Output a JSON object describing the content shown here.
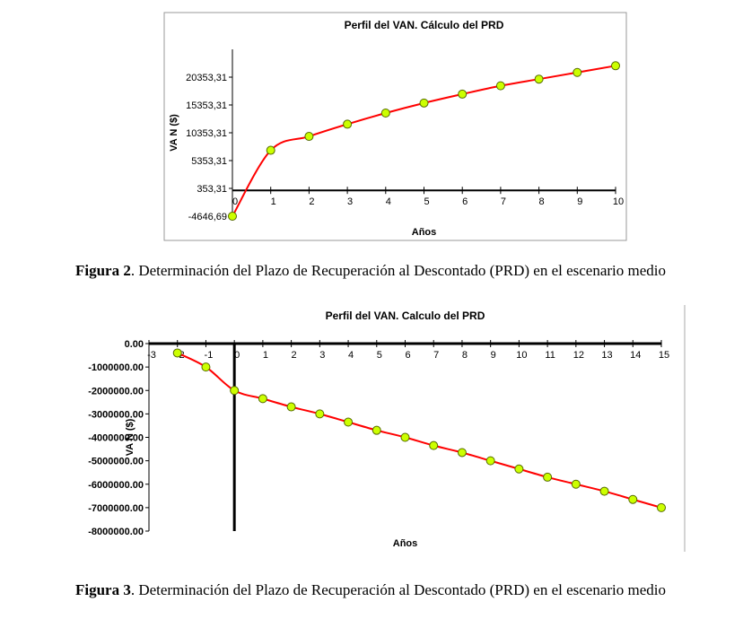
{
  "chart_data": [
    {
      "type": "line",
      "title": "Perfil del VAN. Cálculo del PRD",
      "x_label": "Años",
      "y_label": "VA N ($)",
      "x": [
        0,
        1,
        2,
        3,
        4,
        5,
        6,
        7,
        8,
        9,
        10
      ],
      "series": [
        {
          "name": "VAN",
          "color": "#ff0000",
          "marker_color": "#ccff00",
          "values": [
            -4646.69,
            7200,
            9700,
            11900,
            13900,
            15700,
            17300,
            18800,
            20000,
            21200,
            22400
          ]
        }
      ],
      "xlim": [
        0,
        10
      ],
      "xticks": [
        0,
        1,
        2,
        3,
        4,
        5,
        6,
        7,
        8,
        9,
        10
      ],
      "ylim": [
        -4646.69,
        25353.31
      ],
      "yticks": [
        {
          "value": -4646.69,
          "label": "-4646,69"
        },
        {
          "value": 353.31,
          "label": "353,31"
        },
        {
          "value": 5353.31,
          "label": "5353,31"
        },
        {
          "value": 10353.31,
          "label": "10353,31"
        },
        {
          "value": 15353.31,
          "label": "15353,31"
        },
        {
          "value": 20353.31,
          "label": "20353,31"
        }
      ]
    },
    {
      "type": "line",
      "title": "Perfil del VAN. Calculo del PRD",
      "x_label": "Años",
      "y_label": "VA N ($)",
      "x": [
        -2,
        -1,
        0,
        1,
        2,
        3,
        4,
        5,
        6,
        7,
        8,
        9,
        10,
        11,
        12,
        13,
        14,
        15
      ],
      "series": [
        {
          "name": "VAN",
          "color": "#ff0000",
          "marker_color": "#ccff00",
          "values": [
            -400000,
            -1000000,
            -2000000,
            -2350000,
            -2700000,
            -3000000,
            -3350000,
            -3700000,
            -4000000,
            -4350000,
            -4650000,
            -5000000,
            -5350000,
            -5700000,
            -6000000,
            -6300000,
            -6650000,
            -7000000
          ]
        }
      ],
      "xlim": [
        -3,
        15
      ],
      "xticks": [
        -3,
        -2,
        -1,
        0,
        1,
        2,
        3,
        4,
        5,
        6,
        7,
        8,
        9,
        10,
        11,
        12,
        13,
        14,
        15
      ],
      "ylim": [
        -8000000,
        0
      ],
      "yticks": [
        {
          "value": 0,
          "label": "0.00"
        },
        {
          "value": -1000000,
          "label": "-1000000.00"
        },
        {
          "value": -2000000,
          "label": "-2000000.00"
        },
        {
          "value": -3000000,
          "label": "-3000000.00"
        },
        {
          "value": -4000000,
          "label": "-4000000.00"
        },
        {
          "value": -5000000,
          "label": "-5000000.00"
        },
        {
          "value": -6000000,
          "label": "-6000000.00"
        },
        {
          "value": -7000000,
          "label": "-7000000.00"
        },
        {
          "value": -8000000,
          "label": "-8000000.00"
        }
      ]
    }
  ],
  "captions": [
    {
      "label": "Figura 2",
      "text": ". Determinación del Plazo de Recuperación al Descontado (PRD) en el escenario medio"
    },
    {
      "label": "Figura 3",
      "text": ". Determinación del Plazo de Recuperación al Descontado (PRD) en el escenario medio"
    }
  ]
}
